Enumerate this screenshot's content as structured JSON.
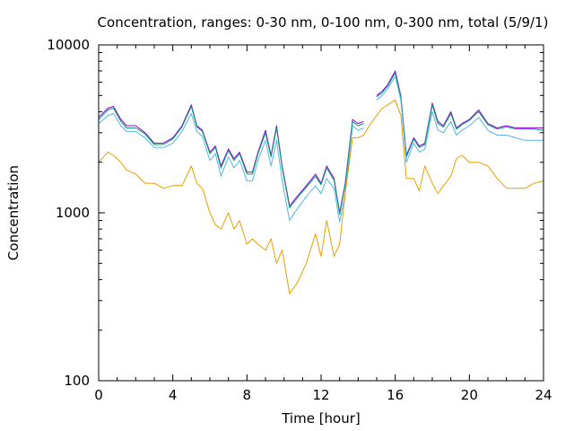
{
  "chart_data": {
    "type": "line",
    "title": "Concentration, ranges: 0-30 nm, 0-100 nm, 0-300 nm, total (5/9/1)",
    "xlabel": "Time [hour]",
    "ylabel": "Concentration",
    "xlim": [
      0,
      24
    ],
    "ylim": [
      100,
      10000
    ],
    "yscale": "log",
    "grid": false,
    "legend": "none",
    "xticks": [
      "0",
      "4",
      "8",
      "12",
      "16",
      "20",
      "24"
    ],
    "yticks": [
      "100",
      "1000",
      "10000"
    ],
    "x": [
      0,
      0.5,
      0.8,
      1.2,
      1.5,
      2,
      2.5,
      3,
      3.5,
      4,
      4.5,
      5,
      5.3,
      5.6,
      6,
      6.3,
      6.6,
      7,
      7.3,
      7.6,
      8,
      8.3,
      8.6,
      9,
      9.3,
      9.6,
      9.9,
      10.3,
      10.7,
      11.2,
      11.7,
      12,
      12.3,
      12.7,
      13,
      13.3,
      13.7,
      14,
      14.3,
      14.6,
      15,
      15.3,
      15.6,
      16,
      16.3,
      16.6,
      17,
      17.3,
      17.6,
      18,
      18.3,
      18.6,
      19,
      19.3,
      19.6,
      20,
      20.5,
      21,
      21.5,
      22,
      22.5,
      23,
      23.5,
      24
    ],
    "series": [
      {
        "color": "#9400d3",
        "values": [
          3700,
          4200,
          4300,
          3600,
          3300,
          3300,
          3000,
          2600,
          2600,
          2800,
          3300,
          4400,
          3300,
          3100,
          2300,
          2500,
          1900,
          2400,
          2100,
          2300,
          1750,
          1750,
          2300,
          3100,
          2200,
          3300,
          1900,
          1100,
          1250,
          1450,
          1700,
          1500,
          1900,
          1600,
          1000,
          1500,
          3600,
          3400,
          3500,
          null,
          5000,
          5300,
          5800,
          7000,
          5000,
          2200,
          2800,
          2500,
          2600,
          4500,
          3500,
          3300,
          4000,
          3200,
          3400,
          3600,
          4100,
          3400,
          3200,
          3300,
          3200,
          3200,
          3200,
          3200
        ]
      },
      {
        "color": "#009e73",
        "values": [
          3600,
          4100,
          4200,
          3500,
          3200,
          3200,
          2950,
          2550,
          2550,
          2750,
          3250,
          4300,
          3250,
          3050,
          2250,
          2450,
          1850,
          2350,
          2050,
          2250,
          1700,
          1700,
          2250,
          3000,
          2150,
          3200,
          1850,
          1070,
          1220,
          1420,
          1650,
          1470,
          1850,
          1560,
          980,
          1460,
          3500,
          3300,
          3400,
          null,
          4900,
          5200,
          5700,
          6800,
          4900,
          2150,
          2750,
          2450,
          2550,
          4400,
          3400,
          3250,
          3900,
          3150,
          3350,
          3550,
          4000,
          3350,
          3150,
          3250,
          3150,
          3150,
          3150,
          3100
        ]
      },
      {
        "color": "#56b4e9",
        "values": [
          3400,
          3800,
          3900,
          3300,
          3050,
          3050,
          2800,
          2450,
          2450,
          2600,
          3050,
          3900,
          3050,
          2850,
          2050,
          2250,
          1650,
          2150,
          1850,
          2050,
          1550,
          1550,
          2050,
          2700,
          1900,
          2700,
          1550,
          900,
          1050,
          1250,
          1450,
          1300,
          1600,
          1400,
          880,
          1300,
          3300,
          3100,
          3200,
          null,
          4700,
          5000,
          5500,
          6500,
          4700,
          2000,
          2600,
          2300,
          2400,
          4000,
          3100,
          3000,
          3500,
          2900,
          3100,
          3300,
          3700,
          3100,
          2900,
          2900,
          2800,
          2700,
          2700,
          2700
        ]
      },
      {
        "color": "#e69f00",
        "values": [
          2000,
          2300,
          2200,
          2000,
          1800,
          1700,
          1500,
          1500,
          1400,
          1450,
          1450,
          1900,
          1500,
          1400,
          1000,
          850,
          800,
          1000,
          800,
          900,
          650,
          700,
          650,
          600,
          700,
          500,
          600,
          330,
          380,
          500,
          750,
          550,
          900,
          550,
          650,
          1300,
          2800,
          2800,
          2900,
          3300,
          3800,
          4200,
          4400,
          4700,
          3800,
          1600,
          1600,
          1350,
          1900,
          1500,
          1300,
          1450,
          1650,
          2100,
          2200,
          2000,
          2000,
          1900,
          1600,
          1400,
          1400,
          1400,
          1500,
          1550
        ]
      }
    ]
  }
}
